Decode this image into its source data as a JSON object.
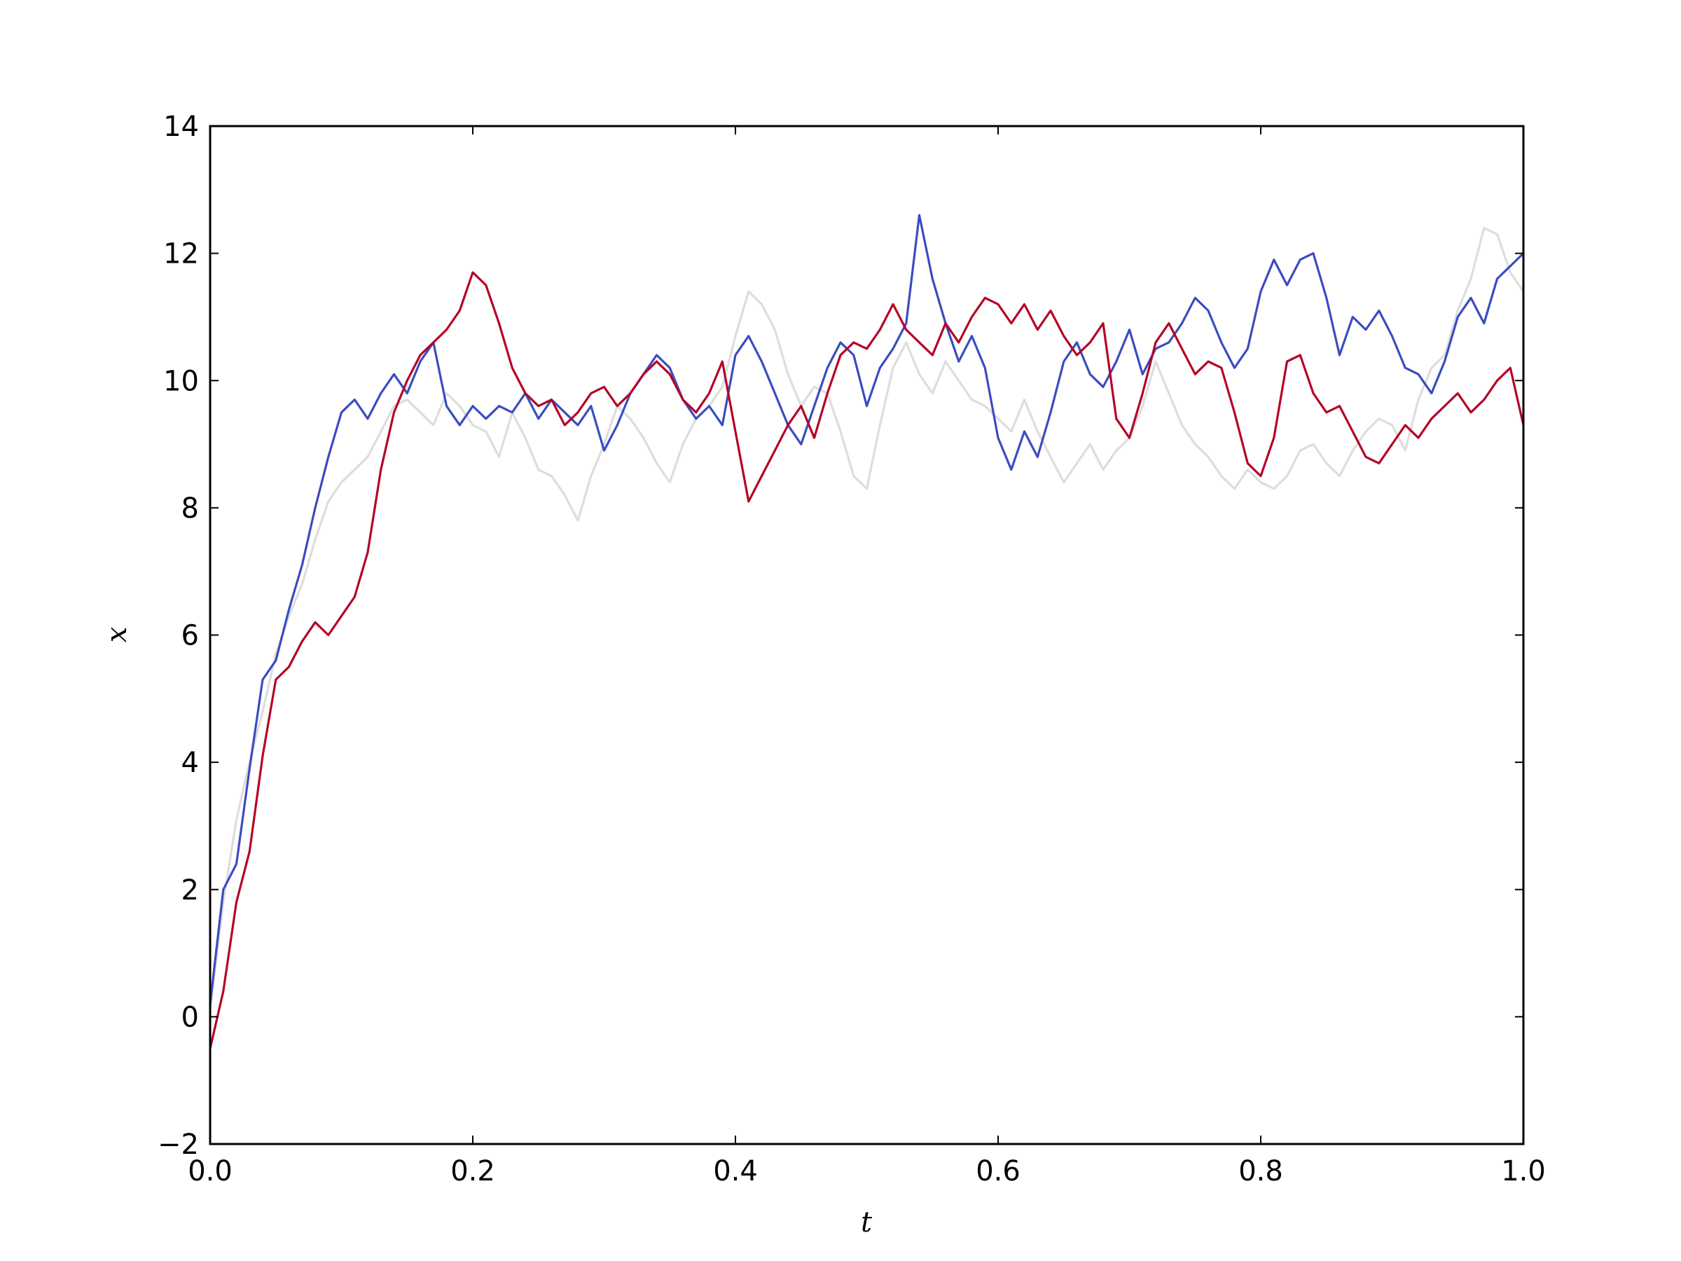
{
  "chart_data": {
    "type": "line",
    "title": "",
    "xlabel": "t",
    "ylabel": "x",
    "xlim": [
      0.0,
      1.0
    ],
    "ylim": [
      -2,
      14
    ],
    "xticks": [
      "0.0",
      "0.2",
      "0.4",
      "0.6",
      "0.8",
      "1.0"
    ],
    "yticks": [
      "−2",
      "0",
      "2",
      "4",
      "6",
      "8",
      "10",
      "12",
      "14"
    ],
    "grid": false,
    "legend": "none",
    "series": [
      {
        "color": "#dddddd",
        "x": [
          0.0,
          0.01,
          0.02,
          0.03,
          0.04,
          0.05,
          0.06,
          0.07,
          0.08,
          0.09,
          0.1,
          0.11,
          0.12,
          0.13,
          0.14,
          0.15,
          0.16,
          0.17,
          0.18,
          0.19,
          0.2,
          0.21,
          0.22,
          0.23,
          0.24,
          0.25,
          0.26,
          0.27,
          0.28,
          0.29,
          0.3,
          0.31,
          0.32,
          0.33,
          0.34,
          0.35,
          0.36,
          0.37,
          0.38,
          0.39,
          0.4,
          0.41,
          0.42,
          0.43,
          0.44,
          0.45,
          0.46,
          0.47,
          0.48,
          0.49,
          0.5,
          0.51,
          0.52,
          0.53,
          0.54,
          0.55,
          0.56,
          0.57,
          0.58,
          0.59,
          0.6,
          0.61,
          0.62,
          0.63,
          0.64,
          0.65,
          0.66,
          0.67,
          0.68,
          0.69,
          0.7,
          0.71,
          0.72,
          0.73,
          0.74,
          0.75,
          0.76,
          0.77,
          0.78,
          0.79,
          0.8,
          0.81,
          0.82,
          0.83,
          0.84,
          0.85,
          0.86,
          0.87,
          0.88,
          0.89,
          0.9,
          0.91,
          0.92,
          0.93,
          0.94,
          0.95,
          0.96,
          0.97,
          0.98,
          0.99,
          1.0
        ],
        "y": [
          0.1,
          1.8,
          3.1,
          4.0,
          4.8,
          5.7,
          6.3,
          6.8,
          7.5,
          8.1,
          8.4,
          8.6,
          8.8,
          9.2,
          9.6,
          9.7,
          9.5,
          9.3,
          9.8,
          9.6,
          9.3,
          9.2,
          8.8,
          9.5,
          9.1,
          8.6,
          8.5,
          8.2,
          7.8,
          8.5,
          9.0,
          9.6,
          9.4,
          9.1,
          8.7,
          8.4,
          9.0,
          9.4,
          9.6,
          9.9,
          10.7,
          11.4,
          11.2,
          10.8,
          10.1,
          9.6,
          9.9,
          9.8,
          9.2,
          8.5,
          8.3,
          9.3,
          10.2,
          10.6,
          10.1,
          9.8,
          10.3,
          10.0,
          9.7,
          9.6,
          9.4,
          9.2,
          9.7,
          9.2,
          8.8,
          8.4,
          8.7,
          9.0,
          8.6,
          8.9,
          9.1,
          9.6,
          10.3,
          9.8,
          9.3,
          9.0,
          8.8,
          8.5,
          8.3,
          8.6,
          8.4,
          8.3,
          8.5,
          8.9,
          9.0,
          8.7,
          8.5,
          8.9,
          9.2,
          9.4,
          9.3,
          8.9,
          9.7,
          10.2,
          10.4,
          11.1,
          11.6,
          12.4,
          12.3,
          11.7,
          11.4
        ]
      },
      {
        "color": "#3b4cc0",
        "x": [
          0.0,
          0.01,
          0.02,
          0.03,
          0.04,
          0.05,
          0.06,
          0.07,
          0.08,
          0.09,
          0.1,
          0.11,
          0.12,
          0.13,
          0.14,
          0.15,
          0.16,
          0.17,
          0.18,
          0.19,
          0.2,
          0.21,
          0.22,
          0.23,
          0.24,
          0.25,
          0.26,
          0.27,
          0.28,
          0.29,
          0.3,
          0.31,
          0.32,
          0.33,
          0.34,
          0.35,
          0.36,
          0.37,
          0.38,
          0.39,
          0.4,
          0.41,
          0.42,
          0.43,
          0.44,
          0.45,
          0.46,
          0.47,
          0.48,
          0.49,
          0.5,
          0.51,
          0.52,
          0.53,
          0.54,
          0.55,
          0.56,
          0.57,
          0.58,
          0.59,
          0.6,
          0.61,
          0.62,
          0.63,
          0.64,
          0.65,
          0.66,
          0.67,
          0.68,
          0.69,
          0.7,
          0.71,
          0.72,
          0.73,
          0.74,
          0.75,
          0.76,
          0.77,
          0.78,
          0.79,
          0.8,
          0.81,
          0.82,
          0.83,
          0.84,
          0.85,
          0.86,
          0.87,
          0.88,
          0.89,
          0.9,
          0.91,
          0.92,
          0.93,
          0.94,
          0.95,
          0.96,
          0.97,
          0.98,
          0.99,
          1.0
        ],
        "y": [
          0.2,
          2.0,
          2.4,
          3.9,
          5.3,
          5.6,
          6.4,
          7.1,
          8.0,
          8.8,
          9.5,
          9.7,
          9.4,
          9.8,
          10.1,
          9.8,
          10.3,
          10.6,
          9.6,
          9.3,
          9.6,
          9.4,
          9.6,
          9.5,
          9.8,
          9.4,
          9.7,
          9.5,
          9.3,
          9.6,
          8.9,
          9.3,
          9.8,
          10.1,
          10.4,
          10.2,
          9.7,
          9.4,
          9.6,
          9.3,
          10.4,
          10.7,
          10.3,
          9.8,
          9.3,
          9.0,
          9.6,
          10.2,
          10.6,
          10.4,
          9.6,
          10.2,
          10.5,
          10.9,
          12.6,
          11.6,
          10.9,
          10.3,
          10.7,
          10.2,
          9.1,
          8.6,
          9.2,
          8.8,
          9.5,
          10.3,
          10.6,
          10.1,
          9.9,
          10.3,
          10.8,
          10.1,
          10.5,
          10.6,
          10.9,
          11.3,
          11.1,
          10.6,
          10.2,
          10.5,
          11.4,
          11.9,
          11.5,
          11.9,
          12.0,
          11.3,
          10.4,
          11.0,
          10.8,
          11.1,
          10.7,
          10.2,
          10.1,
          9.8,
          10.3,
          11.0,
          11.3,
          10.9,
          11.6,
          11.8,
          12.0
        ]
      },
      {
        "color": "#b40426",
        "x": [
          0.0,
          0.01,
          0.02,
          0.03,
          0.04,
          0.05,
          0.06,
          0.07,
          0.08,
          0.09,
          0.1,
          0.11,
          0.12,
          0.13,
          0.14,
          0.15,
          0.16,
          0.17,
          0.18,
          0.19,
          0.2,
          0.21,
          0.22,
          0.23,
          0.24,
          0.25,
          0.26,
          0.27,
          0.28,
          0.29,
          0.3,
          0.31,
          0.32,
          0.33,
          0.34,
          0.35,
          0.36,
          0.37,
          0.38,
          0.39,
          0.4,
          0.41,
          0.42,
          0.43,
          0.44,
          0.45,
          0.46,
          0.47,
          0.48,
          0.49,
          0.5,
          0.51,
          0.52,
          0.53,
          0.54,
          0.55,
          0.56,
          0.57,
          0.58,
          0.59,
          0.6,
          0.61,
          0.62,
          0.63,
          0.64,
          0.65,
          0.66,
          0.67,
          0.68,
          0.69,
          0.7,
          0.71,
          0.72,
          0.73,
          0.74,
          0.75,
          0.76,
          0.77,
          0.78,
          0.79,
          0.8,
          0.81,
          0.82,
          0.83,
          0.84,
          0.85,
          0.86,
          0.87,
          0.88,
          0.89,
          0.9,
          0.91,
          0.92,
          0.93,
          0.94,
          0.95,
          0.96,
          0.97,
          0.98,
          0.99,
          1.0
        ],
        "y": [
          -0.5,
          0.4,
          1.8,
          2.6,
          4.1,
          5.3,
          5.5,
          5.9,
          6.2,
          6.0,
          6.3,
          6.6,
          7.3,
          8.6,
          9.5,
          10.0,
          10.4,
          10.6,
          10.8,
          11.1,
          11.7,
          11.5,
          10.9,
          10.2,
          9.8,
          9.6,
          9.7,
          9.3,
          9.5,
          9.8,
          9.9,
          9.6,
          9.8,
          10.1,
          10.3,
          10.1,
          9.7,
          9.5,
          9.8,
          10.3,
          9.2,
          8.1,
          8.5,
          8.9,
          9.3,
          9.6,
          9.1,
          9.8,
          10.4,
          10.6,
          10.5,
          10.8,
          11.2,
          10.8,
          10.6,
          10.4,
          10.9,
          10.6,
          11.0,
          11.3,
          11.2,
          10.9,
          11.2,
          10.8,
          11.1,
          10.7,
          10.4,
          10.6,
          10.9,
          9.4,
          9.1,
          9.8,
          10.6,
          10.9,
          10.5,
          10.1,
          10.3,
          10.2,
          9.5,
          8.7,
          8.5,
          9.1,
          10.3,
          10.4,
          9.8,
          9.5,
          9.6,
          9.2,
          8.8,
          8.7,
          9.0,
          9.3,
          9.1,
          9.4,
          9.6,
          9.8,
          9.5,
          9.7,
          10.0,
          10.2,
          9.3
        ]
      }
    ]
  }
}
